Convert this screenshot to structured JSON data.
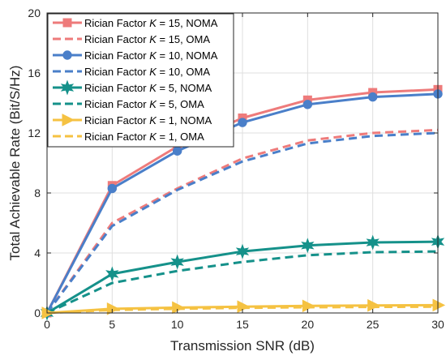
{
  "chart_data": {
    "type": "line",
    "title": "",
    "xlabel": "Transmission SNR (dB)",
    "ylabel": "Total Achievable Rate (Bit/S/Hz)",
    "x": [
      0,
      5,
      10,
      15,
      20,
      25,
      30
    ],
    "xlim": [
      0,
      30
    ],
    "ylim": [
      0,
      20
    ],
    "xticks": [
      "0",
      "5",
      "10",
      "15",
      "20",
      "25",
      "30"
    ],
    "yticks": [
      "0",
      "4",
      "8",
      "12",
      "16",
      "20"
    ],
    "grid": true,
    "legend_position": "top-left",
    "series": [
      {
        "prefix": "Rician Factor ",
        "k_symbol": "K",
        "suffix": " = 15, NOMA",
        "color": "#ee7b7b",
        "style": "solid",
        "marker": "square",
        "values": [
          0,
          8.5,
          11.1,
          13.0,
          14.2,
          14.7,
          14.9
        ]
      },
      {
        "prefix": "Rician Factor ",
        "k_symbol": "K",
        "suffix": " = 15, OMA",
        "color": "#ee7b7b",
        "style": "dashed",
        "marker": "none",
        "values": [
          0,
          6.0,
          8.3,
          10.3,
          11.5,
          12.0,
          12.2
        ]
      },
      {
        "prefix": "Rician Factor ",
        "k_symbol": "K",
        "suffix": " = 10, NOMA",
        "color": "#4a7fc9",
        "style": "solid",
        "marker": "circle",
        "values": [
          0,
          8.3,
          10.8,
          12.7,
          13.9,
          14.4,
          14.6
        ]
      },
      {
        "prefix": "Rician Factor ",
        "k_symbol": "K",
        "suffix": " = 10, OMA",
        "color": "#4a7fc9",
        "style": "dashed",
        "marker": "none",
        "values": [
          0,
          5.8,
          8.2,
          10.1,
          11.3,
          11.8,
          12.0
        ]
      },
      {
        "prefix": "Rician Factor ",
        "k_symbol": "K",
        "suffix": " = 5, NOMA",
        "color": "#15918a",
        "style": "solid",
        "marker": "hexagram",
        "values": [
          0,
          2.6,
          3.4,
          4.1,
          4.5,
          4.7,
          4.75
        ]
      },
      {
        "prefix": "Rician Factor ",
        "k_symbol": "K",
        "suffix": " = 5, OMA",
        "color": "#15918a",
        "style": "dashed",
        "marker": "none",
        "values": [
          0,
          2.0,
          2.8,
          3.4,
          3.85,
          4.05,
          4.1
        ]
      },
      {
        "prefix": "Rician Factor ",
        "k_symbol": "K",
        "suffix": " = 1, NOMA",
        "color": "#f5c242",
        "style": "solid",
        "marker": "triangle-right",
        "values": [
          0,
          0.28,
          0.36,
          0.42,
          0.47,
          0.5,
          0.52
        ]
      },
      {
        "prefix": "Rician Factor ",
        "k_symbol": "K",
        "suffix": " = 1, OMA",
        "color": "#f5c242",
        "style": "dashed",
        "marker": "none",
        "values": [
          0,
          0.2,
          0.28,
          0.34,
          0.38,
          0.4,
          0.42
        ]
      }
    ]
  }
}
